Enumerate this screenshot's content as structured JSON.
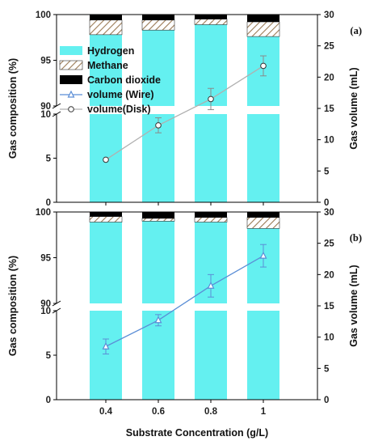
{
  "chart_data": {
    "type": "bar",
    "xlabel": "Substrate Concentration (g/L)",
    "categories": [
      "0.4",
      "0.6",
      "0.8",
      "1"
    ],
    "legend": {
      "placement": "top-left",
      "entries": [
        "Hydrogen",
        "Methane",
        "Carbon dioxide",
        "volume (Wire)",
        "volume(Disk)"
      ]
    },
    "colors": {
      "hydrogen": "#64f0f0",
      "methane_fill": "#ffffff",
      "methane_hatch": "#9a7a55",
      "co2": "#000000",
      "wire_line": "#5b8ed6",
      "disk_line": "#b0b0b0",
      "error_bar": "#8a8a8a"
    },
    "left_axis": {
      "label": "Gas composition (%)",
      "broken": true,
      "lower_range": [
        0,
        10
      ],
      "upper_range": [
        90,
        100
      ],
      "lower_ticks": [
        "0",
        "5",
        "10"
      ],
      "upper_ticks": [
        "90",
        "95",
        "100"
      ]
    },
    "right_axis": {
      "label": "Gas volume (mL)",
      "ylim": [
        0,
        30
      ],
      "ticks": [
        "0",
        "5",
        "10",
        "15",
        "20",
        "25",
        "30"
      ]
    },
    "panels": [
      {
        "label": "(a)",
        "composition": {
          "Hydrogen": [
            97.8,
            98.3,
            98.9,
            97.6
          ],
          "Methane": [
            1.6,
            1.1,
            0.6,
            1.6
          ],
          "Carbon dioxide": [
            0.6,
            0.6,
            0.5,
            0.8
          ]
        },
        "volume_series": {
          "name": "volume(Disk)",
          "marker": "circle",
          "values": [
            6.8,
            12.3,
            16.5,
            21.8
          ],
          "errors": [
            0,
            1.2,
            1.7,
            1.6
          ]
        }
      },
      {
        "label": "(b)",
        "composition": {
          "Hydrogen": [
            98.9,
            99.0,
            98.9,
            98.2
          ],
          "Methane": [
            0.6,
            0.3,
            0.5,
            1.2
          ],
          "Carbon dioxide": [
            0.5,
            0.7,
            0.6,
            0.6
          ]
        },
        "volume_series": {
          "name": "volume (Wire)",
          "marker": "triangle",
          "values": [
            8.5,
            12.7,
            18.2,
            23.0
          ],
          "errors": [
            1.2,
            0.9,
            1.8,
            1.8
          ]
        }
      }
    ]
  }
}
